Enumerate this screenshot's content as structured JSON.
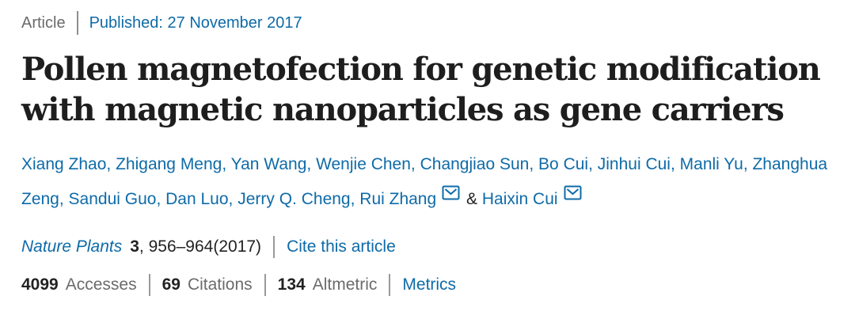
{
  "colors": {
    "link_blue": "#0e6ba8",
    "dark_text": "#222222",
    "gray_text": "#6b6b6b",
    "divider_gray": "#9a9a9a"
  },
  "meta": {
    "article_type": "Article",
    "published": "Published: 27 November 2017"
  },
  "title_lines": [
    "Pollen magnetofection for genetic modification",
    "with magnetic nanoparticles as gene carriers"
  ],
  "authors": {
    "separator": ", ",
    "last_separator": "&",
    "email_icon_name": "envelope-icon",
    "list": [
      {
        "name": "Xiang Zhao"
      },
      {
        "name": "Zhigang Meng"
      },
      {
        "name": "Yan Wang"
      },
      {
        "name": "Wenjie Chen"
      },
      {
        "name": "Changjiao Sun"
      },
      {
        "name": "Bo Cui"
      },
      {
        "name": "Jinhui Cui"
      },
      {
        "name": "Manli Yu"
      },
      {
        "name": "Zhanghua Zeng"
      },
      {
        "name": "Sandui Guo"
      },
      {
        "name": "Dan Luo"
      },
      {
        "name": "Jerry Q. Cheng"
      },
      {
        "name": "Rui Zhang",
        "email_icon": true
      },
      {
        "name": "Haixin Cui",
        "email_icon": true
      }
    ]
  },
  "citation": {
    "journal": "Nature Plants",
    "volume": "3",
    "pages": ", 956–964(2017)",
    "cite_link": "Cite this article"
  },
  "metrics": [
    {
      "value": "4099",
      "label": "Accesses"
    },
    {
      "value": "69",
      "label": "Citations"
    },
    {
      "value": "134",
      "label": "Altmetric"
    },
    {
      "label": "Metrics"
    }
  ]
}
